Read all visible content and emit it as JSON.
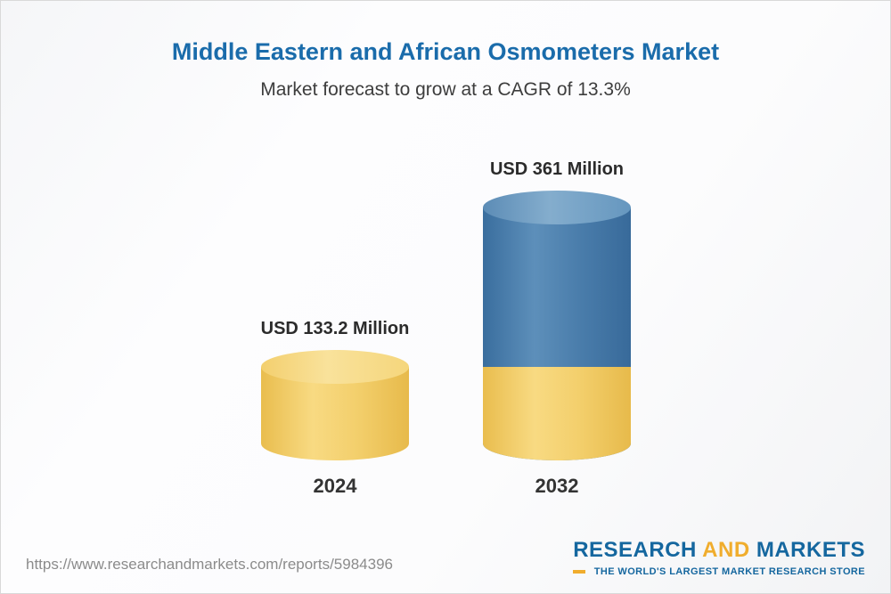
{
  "chart_data": {
    "type": "bar",
    "title": "Middle Eastern and African Osmometers Market",
    "subtitle": "Market forecast to grow at a CAGR of 13.3%",
    "categories": [
      "2024",
      "2032"
    ],
    "values": [
      133.2,
      361
    ],
    "value_labels": [
      "USD 133.2 Million",
      "USD 361 Million"
    ],
    "unit": "USD Million",
    "cagr_percent": 13.3,
    "legend_position": "none",
    "grid": false,
    "colors": {
      "base_segment": "#f2cb63",
      "growth_segment": "#4a7dab",
      "title": "#1a6cab"
    }
  },
  "footer": {
    "url": "https://www.researchandmarkets.com/reports/5984396",
    "logo": {
      "word_research": "RESEARCH",
      "word_and": "AND",
      "word_markets": "MARKETS",
      "tagline": "THE WORLD'S LARGEST MARKET RESEARCH STORE"
    }
  }
}
